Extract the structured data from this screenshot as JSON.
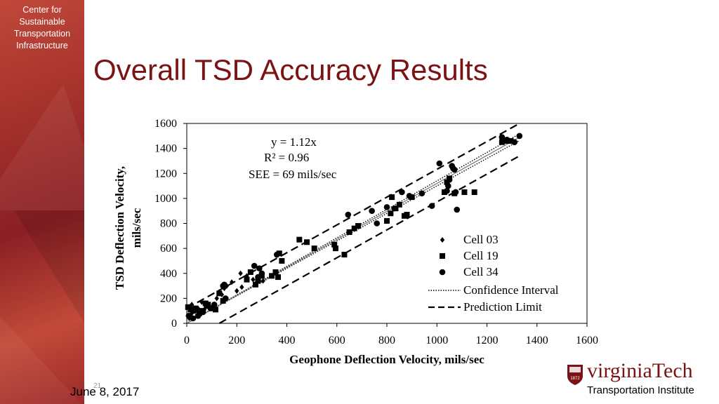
{
  "sidebar": {
    "org_lines": [
      "Center for",
      "Sustainable",
      "Transportation",
      "Infrastructure"
    ]
  },
  "title": "Overall TSD Accuracy Results",
  "footer": {
    "date": "June 8, 2017",
    "page_number": "21"
  },
  "logo": {
    "name": "virginiaTech",
    "subtitle": "Transportation Institute",
    "seal_year": "1872"
  },
  "colors": {
    "accent": "#7b1315",
    "sidebar": "#a8342c"
  },
  "chart_data": {
    "type": "scatter",
    "xlabel": "Geophone Deflection Velocity, mils/sec",
    "ylabel": "TSD Deflection Velocity, mils/sec",
    "xlim": [
      0,
      1600
    ],
    "ylim": [
      0,
      1600
    ],
    "xticks": [
      0,
      200,
      400,
      600,
      800,
      1000,
      1200,
      1400,
      1600
    ],
    "yticks": [
      0,
      200,
      400,
      600,
      800,
      1000,
      1200,
      1400,
      1600
    ],
    "grid": false,
    "legend_position": "bottom-right",
    "annotation": [
      "y = 1.12x",
      "R² = 0.96",
      "SEE = 69 mils/sec"
    ],
    "regression": {
      "slope": 1.12
    },
    "confidence_interval": {
      "slopes": [
        1.1,
        1.14
      ]
    },
    "prediction_limit": {
      "upper": {
        "from": [
          0,
          120
        ],
        "to": [
          1330,
          1600
        ]
      },
      "lower": {
        "from": [
          130,
          0
        ],
        "to": [
          1330,
          1340
        ]
      }
    },
    "legend": [
      "Cell 03",
      "Cell 19",
      "Cell 34",
      "Confidence Interval",
      "Prediction Limit"
    ],
    "series": [
      {
        "name": "Cell 03",
        "marker": "diamond",
        "points": [
          [
            10,
            40
          ],
          [
            20,
            80
          ],
          [
            35,
            100
          ],
          [
            45,
            120
          ],
          [
            55,
            90
          ],
          [
            70,
            110
          ],
          [
            85,
            140
          ],
          [
            100,
            130
          ],
          [
            120,
            200
          ],
          [
            140,
            230
          ],
          [
            150,
            280
          ],
          [
            160,
            300
          ],
          [
            180,
            330
          ],
          [
            200,
            260
          ],
          [
            220,
            290
          ],
          [
            215,
            400
          ],
          [
            240,
            380
          ],
          [
            265,
            350
          ],
          [
            280,
            330
          ],
          [
            305,
            340
          ],
          [
            20,
            150
          ],
          [
            60,
            170
          ]
        ]
      },
      {
        "name": "Cell 19",
        "marker": "square",
        "points": [
          [
            5,
            130
          ],
          [
            15,
            110
          ],
          [
            25,
            100
          ],
          [
            35,
            120
          ],
          [
            50,
            80
          ],
          [
            60,
            100
          ],
          [
            75,
            160
          ],
          [
            85,
            150
          ],
          [
            100,
            120
          ],
          [
            115,
            110
          ],
          [
            130,
            240
          ],
          [
            145,
            180
          ],
          [
            240,
            350
          ],
          [
            255,
            410
          ],
          [
            275,
            310
          ],
          [
            285,
            340
          ],
          [
            300,
            380
          ],
          [
            340,
            380
          ],
          [
            355,
            410
          ],
          [
            365,
            370
          ],
          [
            370,
            560
          ],
          [
            380,
            500
          ],
          [
            450,
            670
          ],
          [
            480,
            650
          ],
          [
            510,
            600
          ],
          [
            590,
            630
          ],
          [
            595,
            600
          ],
          [
            630,
            550
          ],
          [
            650,
            730
          ],
          [
            670,
            760
          ],
          [
            685,
            780
          ],
          [
            800,
            820
          ],
          [
            815,
            880
          ],
          [
            820,
            1010
          ],
          [
            835,
            920
          ],
          [
            850,
            950
          ],
          [
            870,
            860
          ],
          [
            880,
            870
          ],
          [
            900,
            1010
          ],
          [
            1030,
            1050
          ],
          [
            1040,
            1130
          ],
          [
            1050,
            1160
          ],
          [
            1070,
            1040
          ],
          [
            1110,
            1050
          ],
          [
            1150,
            1050
          ],
          [
            1260,
            1450
          ],
          [
            1280,
            1460
          ],
          [
            1295,
            1460
          ]
        ]
      },
      {
        "name": "Cell 34",
        "marker": "circle",
        "points": [
          [
            8,
            60
          ],
          [
            25,
            40
          ],
          [
            45,
            60
          ],
          [
            65,
            90
          ],
          [
            80,
            140
          ],
          [
            95,
            120
          ],
          [
            110,
            150
          ],
          [
            145,
            300
          ],
          [
            150,
            310
          ],
          [
            155,
            200
          ],
          [
            270,
            460
          ],
          [
            285,
            370
          ],
          [
            290,
            440
          ],
          [
            300,
            400
          ],
          [
            360,
            550
          ],
          [
            645,
            870
          ],
          [
            740,
            900
          ],
          [
            760,
            800
          ],
          [
            800,
            930
          ],
          [
            830,
            920
          ],
          [
            860,
            1050
          ],
          [
            890,
            1020
          ],
          [
            940,
            1040
          ],
          [
            980,
            940
          ],
          [
            1010,
            1280
          ],
          [
            1040,
            1060
          ],
          [
            1045,
            1100
          ],
          [
            1050,
            1150
          ],
          [
            1060,
            1260
          ],
          [
            1065,
            1240
          ],
          [
            1070,
            1230
          ],
          [
            1080,
            910
          ],
          [
            1075,
            1050
          ],
          [
            1260,
            1490
          ],
          [
            1280,
            1470
          ],
          [
            1310,
            1450
          ],
          [
            1330,
            1500
          ]
        ]
      }
    ]
  }
}
